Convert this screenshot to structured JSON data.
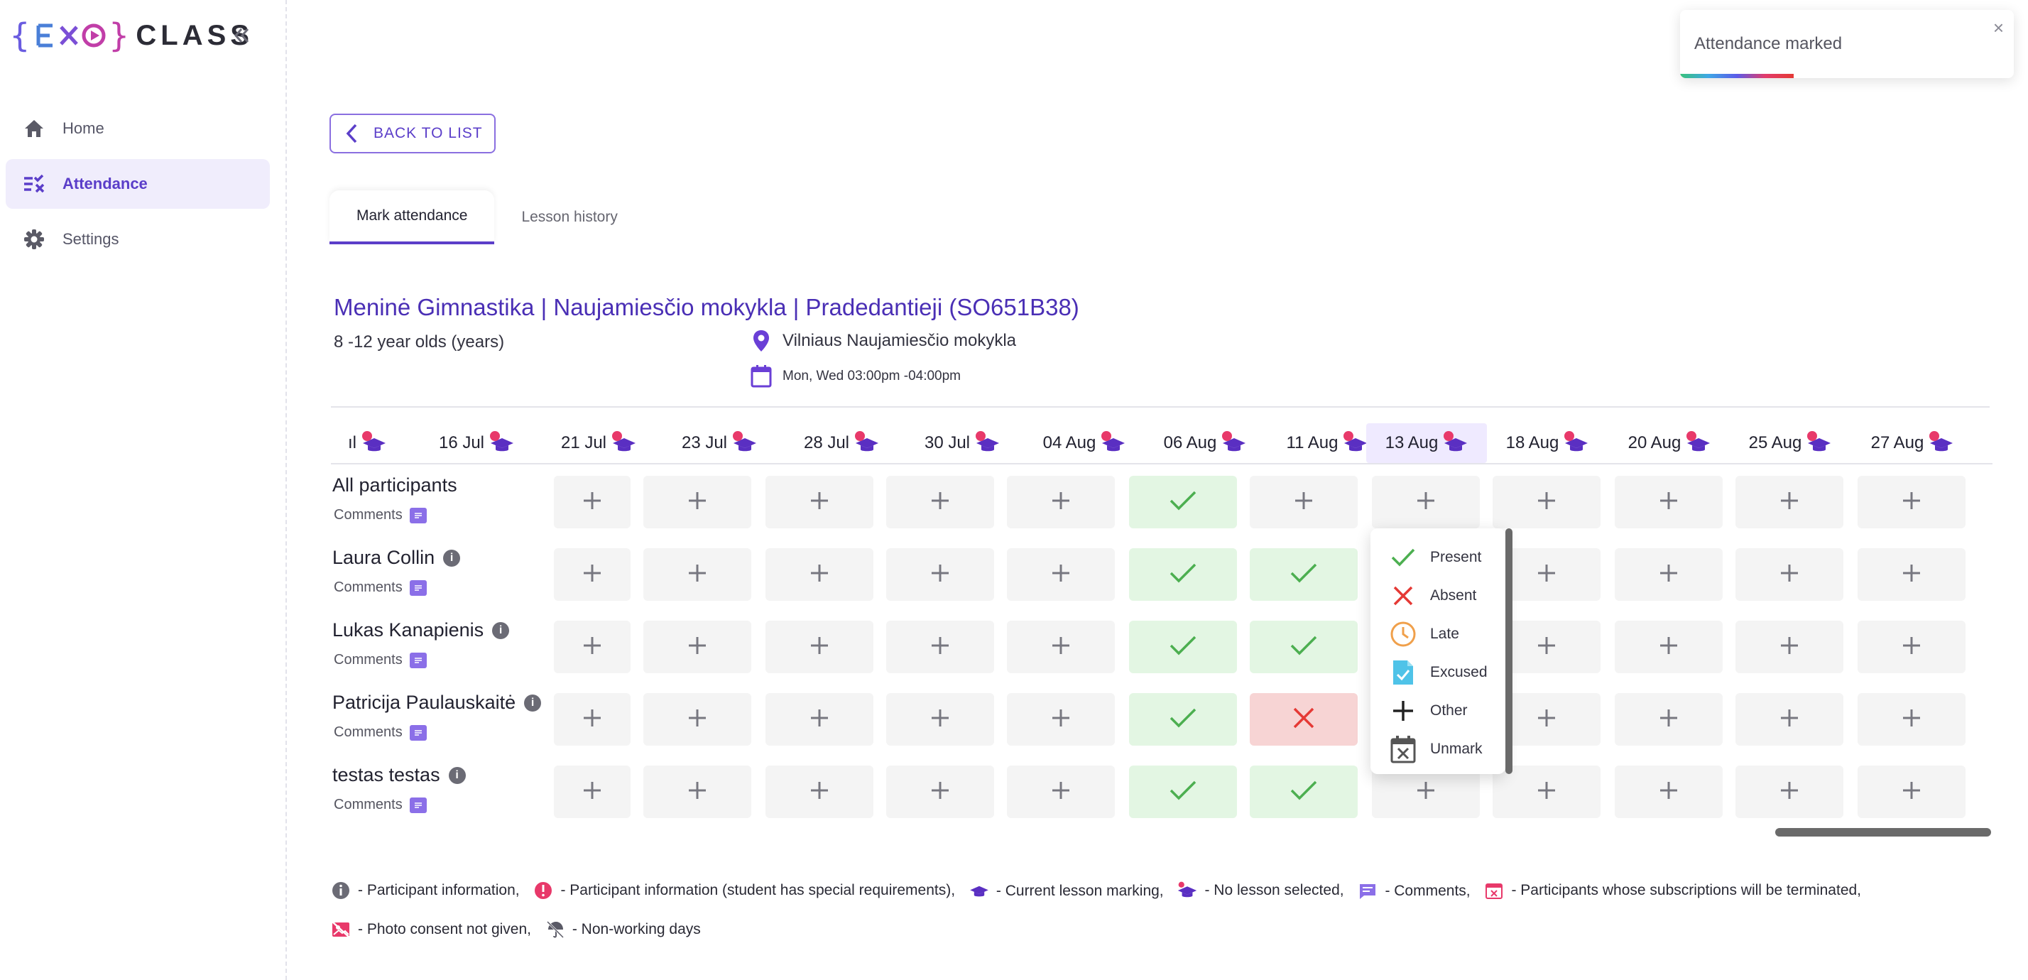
{
  "logo": {
    "left": "{",
    "mid": "EXO",
    "right": "}",
    "word": "CLASS"
  },
  "sidebar": {
    "items": [
      {
        "label": "Home",
        "icon": "home-icon",
        "active": false
      },
      {
        "label": "Attendance",
        "icon": "attendance-icon",
        "active": true
      },
      {
        "label": "Settings",
        "icon": "gear-icon",
        "active": false
      }
    ]
  },
  "back_button": {
    "label": "BACK TO LIST"
  },
  "tabs": [
    {
      "label": "Mark attendance",
      "active": true
    },
    {
      "label": "Lesson history",
      "active": false
    }
  ],
  "group": {
    "title": "Meninė Gimnastika | Naujamiesčio mokykla | Pradedantieji (SO651B38)",
    "age": "8 -12 year olds (years)",
    "location": "Vilniaus Naujamiesčio mokykla",
    "schedule": "Mon, Wed 03:00pm -04:00pm"
  },
  "dates": [
    "ıl",
    "16 Jul",
    "21 Jul",
    "23 Jul",
    "28 Jul",
    "30 Jul",
    "04 Aug",
    "06 Aug",
    "11 Aug",
    "13 Aug",
    "18 Aug",
    "20 Aug",
    "25 Aug",
    "27 Aug"
  ],
  "selected_date": "13 Aug",
  "participants": [
    {
      "name": "All participants",
      "info": false,
      "comments": "Comments",
      "marks": [
        "+",
        "+",
        "+",
        "+",
        "+",
        "present",
        "+",
        "+",
        "+",
        "+",
        "+",
        "+"
      ]
    },
    {
      "name": "Laura Collin",
      "info": true,
      "comments": "Comments",
      "marks": [
        "+",
        "+",
        "+",
        "+",
        "+",
        "present",
        "present",
        "popup",
        "+",
        "+",
        "+",
        "+"
      ]
    },
    {
      "name": "Lukas Kanapienis",
      "info": true,
      "comments": "Comments",
      "marks": [
        "+",
        "+",
        "+",
        "+",
        "+",
        "present",
        "present",
        "popup",
        "+",
        "+",
        "+",
        "+"
      ]
    },
    {
      "name": "Patricija Paulauskaitė",
      "info": true,
      "comments": "Comments",
      "marks": [
        "+",
        "+",
        "+",
        "+",
        "+",
        "present",
        "absent",
        "popup",
        "+",
        "+",
        "+",
        "+"
      ]
    },
    {
      "name": "testas testas",
      "info": true,
      "comments": "Comments",
      "marks": [
        "+",
        "+",
        "+",
        "+",
        "+",
        "present",
        "present",
        "+",
        "+",
        "+",
        "+",
        "+"
      ]
    }
  ],
  "status_menu": [
    {
      "label": "Present",
      "icon": "check-icon",
      "color": "#4caf50"
    },
    {
      "label": "Absent",
      "icon": "cross-icon",
      "color": "#e53935"
    },
    {
      "label": "Late",
      "icon": "clock-icon",
      "color": "#f0a04b"
    },
    {
      "label": "Excused",
      "icon": "document-check-icon",
      "color": "#4fc3e8"
    },
    {
      "label": "Other",
      "icon": "plus-icon",
      "color": "#222222"
    },
    {
      "label": "Unmark",
      "icon": "calendar-x-icon",
      "color": "#555555"
    }
  ],
  "legend": [
    {
      "icon": "info-icon",
      "text": "- Participant information,"
    },
    {
      "icon": "alert-info-icon",
      "text": "- Participant information (student has special requirements),"
    },
    {
      "icon": "graduation-cap-icon",
      "text": "- Current lesson marking,"
    },
    {
      "icon": "graduation-cap-alert-icon",
      "text": "- No lesson selected,"
    },
    {
      "icon": "comment-icon",
      "text": "- Comments,"
    },
    {
      "icon": "calendar-x-pink-icon",
      "text": "- Participants whose subscriptions will be terminated,"
    },
    {
      "icon": "photo-off-icon",
      "text": "- Photo consent not given,"
    },
    {
      "icon": "umbrella-off-icon",
      "text": "- Non-working days"
    }
  ],
  "toast": {
    "message": "Attendance marked",
    "progress": 0.34
  },
  "colors": {
    "accent": "#5b3ec9",
    "present_bg": "#e3f6e3",
    "absent_bg": "#f7d4d4",
    "alert": "#e8396a"
  }
}
